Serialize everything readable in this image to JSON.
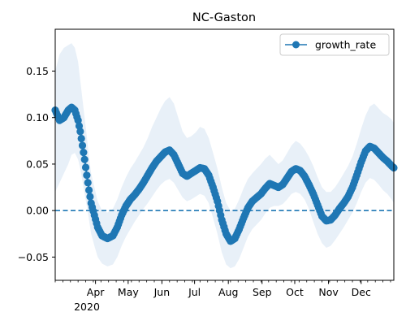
{
  "chart_data": {
    "type": "line",
    "title": "NC-Gaston",
    "xlabel": "",
    "ylabel": "",
    "x_range": [
      "2020-02-24",
      "2020-12-31"
    ],
    "ylim": [
      -0.075,
      0.195
    ],
    "y_ticks": [
      -0.05,
      0.0,
      0.05,
      0.1,
      0.15
    ],
    "y_tick_labels": [
      "−0.05",
      "0.00",
      "0.05",
      "0.10",
      "0.15"
    ],
    "x_ticks": [
      {
        "date": "2020-04-01",
        "label": "Apr"
      },
      {
        "date": "2020-05-01",
        "label": "May"
      },
      {
        "date": "2020-06-01",
        "label": "Jun"
      },
      {
        "date": "2020-07-01",
        "label": "Jul"
      },
      {
        "date": "2020-08-01",
        "label": "Aug"
      },
      {
        "date": "2020-09-01",
        "label": "Sep"
      },
      {
        "date": "2020-10-01",
        "label": "Oct"
      },
      {
        "date": "2020-11-01",
        "label": "Nov"
      },
      {
        "date": "2020-12-01",
        "label": "Dec"
      }
    ],
    "x_year_label": "2020",
    "reference_line": {
      "y": 0.0,
      "style": "dashed"
    },
    "legend": {
      "position": "top-right",
      "entries": [
        "growth_rate"
      ]
    },
    "grid": false,
    "colors": {
      "line": "#1f77b4",
      "band": "#e8f0f8",
      "reference": "#1f77b4"
    },
    "series": [
      {
        "name": "growth_rate",
        "x": [
          "2020-02-24",
          "2020-02-28",
          "2020-03-03",
          "2020-03-07",
          "2020-03-10",
          "2020-03-13",
          "2020-03-16",
          "2020-03-18",
          "2020-03-20",
          "2020-03-22",
          "2020-03-24",
          "2020-03-26",
          "2020-03-28",
          "2020-03-31",
          "2020-04-03",
          "2020-04-07",
          "2020-04-12",
          "2020-04-17",
          "2020-04-21",
          "2020-04-25",
          "2020-04-29",
          "2020-05-03",
          "2020-05-07",
          "2020-05-11",
          "2020-05-15",
          "2020-05-19",
          "2020-05-23",
          "2020-05-27",
          "2020-05-31",
          "2020-06-04",
          "2020-06-08",
          "2020-06-12",
          "2020-06-16",
          "2020-06-20",
          "2020-06-24",
          "2020-06-28",
          "2020-07-02",
          "2020-07-06",
          "2020-07-10",
          "2020-07-14",
          "2020-07-18",
          "2020-07-22",
          "2020-07-26",
          "2020-07-30",
          "2020-08-03",
          "2020-08-07",
          "2020-08-11",
          "2020-08-15",
          "2020-08-19",
          "2020-08-23",
          "2020-08-27",
          "2020-08-31",
          "2020-09-04",
          "2020-09-08",
          "2020-09-12",
          "2020-09-16",
          "2020-09-20",
          "2020-09-24",
          "2020-09-28",
          "2020-10-02",
          "2020-10-06",
          "2020-10-10",
          "2020-10-14",
          "2020-10-18",
          "2020-10-22",
          "2020-10-26",
          "2020-10-30",
          "2020-11-03",
          "2020-11-07",
          "2020-11-11",
          "2020-11-15",
          "2020-11-19",
          "2020-11-23",
          "2020-11-27",
          "2020-12-01",
          "2020-12-05",
          "2020-12-09",
          "2020-12-13",
          "2020-12-17",
          "2020-12-21",
          "2020-12-25",
          "2020-12-29",
          "2020-12-31"
        ],
        "values": [
          0.108,
          0.097,
          0.1,
          0.108,
          0.111,
          0.108,
          0.097,
          0.085,
          0.07,
          0.055,
          0.038,
          0.022,
          0.008,
          -0.005,
          -0.018,
          -0.027,
          -0.03,
          -0.027,
          -0.018,
          -0.005,
          0.005,
          0.012,
          0.017,
          0.023,
          0.03,
          0.038,
          0.046,
          0.053,
          0.058,
          0.063,
          0.065,
          0.06,
          0.05,
          0.04,
          0.037,
          0.04,
          0.043,
          0.046,
          0.045,
          0.038,
          0.025,
          0.01,
          -0.01,
          -0.025,
          -0.033,
          -0.03,
          -0.02,
          -0.008,
          0.003,
          0.01,
          0.014,
          0.018,
          0.024,
          0.029,
          0.027,
          0.025,
          0.028,
          0.035,
          0.042,
          0.045,
          0.043,
          0.037,
          0.028,
          0.018,
          0.006,
          -0.006,
          -0.011,
          -0.01,
          -0.005,
          0.002,
          0.008,
          0.015,
          0.025,
          0.038,
          0.052,
          0.064,
          0.069,
          0.067,
          0.062,
          0.057,
          0.053,
          0.048,
          0.046
        ],
        "lower": [
          0.02,
          0.03,
          0.04,
          0.05,
          0.06,
          0.062,
          0.055,
          0.045,
          0.032,
          0.018,
          0.005,
          -0.01,
          -0.025,
          -0.038,
          -0.05,
          -0.057,
          -0.06,
          -0.058,
          -0.05,
          -0.038,
          -0.028,
          -0.02,
          -0.012,
          -0.005,
          0.002,
          0.008,
          0.015,
          0.022,
          0.028,
          0.032,
          0.034,
          0.03,
          0.022,
          0.014,
          0.01,
          0.012,
          0.015,
          0.018,
          0.016,
          0.008,
          -0.008,
          -0.025,
          -0.045,
          -0.058,
          -0.062,
          -0.06,
          -0.052,
          -0.04,
          -0.028,
          -0.02,
          -0.015,
          -0.01,
          -0.003,
          0.003,
          0.005,
          0.005,
          0.007,
          0.012,
          0.018,
          0.02,
          0.018,
          0.012,
          0.002,
          -0.012,
          -0.025,
          -0.035,
          -0.04,
          -0.038,
          -0.032,
          -0.025,
          -0.018,
          -0.01,
          -0.002,
          0.008,
          0.02,
          0.03,
          0.035,
          0.033,
          0.028,
          0.022,
          0.018,
          0.012,
          0.008
        ],
        "upper": [
          0.15,
          0.168,
          0.175,
          0.178,
          0.18,
          0.175,
          0.16,
          0.14,
          0.12,
          0.1,
          0.08,
          0.058,
          0.04,
          0.025,
          0.01,
          0.0,
          -0.002,
          0.002,
          0.012,
          0.025,
          0.036,
          0.045,
          0.052,
          0.06,
          0.068,
          0.078,
          0.09,
          0.1,
          0.11,
          0.118,
          0.122,
          0.115,
          0.1,
          0.085,
          0.078,
          0.08,
          0.084,
          0.09,
          0.088,
          0.078,
          0.062,
          0.045,
          0.025,
          0.008,
          0.0,
          0.002,
          0.012,
          0.024,
          0.034,
          0.04,
          0.045,
          0.05,
          0.056,
          0.06,
          0.055,
          0.05,
          0.054,
          0.062,
          0.07,
          0.075,
          0.072,
          0.066,
          0.058,
          0.048,
          0.036,
          0.025,
          0.02,
          0.02,
          0.025,
          0.032,
          0.04,
          0.048,
          0.058,
          0.072,
          0.088,
          0.102,
          0.112,
          0.115,
          0.11,
          0.105,
          0.102,
          0.098,
          0.094
        ]
      }
    ]
  }
}
